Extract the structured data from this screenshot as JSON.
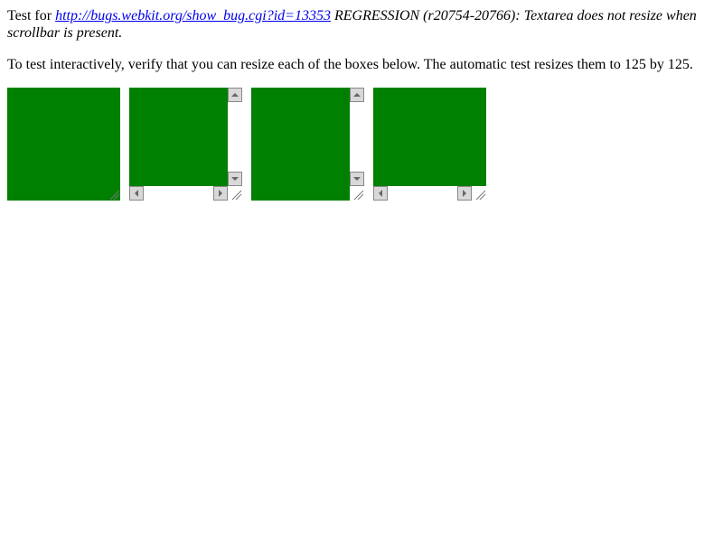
{
  "intro": {
    "prefix": "Test for",
    "link": "http://bugs.webkit.org/show_bug.cgi?id=13353",
    "description": "REGRESSION (r20754-20766): Textarea does not resize when scrollbar is present."
  },
  "instructions": "To test interactively, verify that you can resize each of the boxes below. The automatic test resizes them to 125 by 125."
}
